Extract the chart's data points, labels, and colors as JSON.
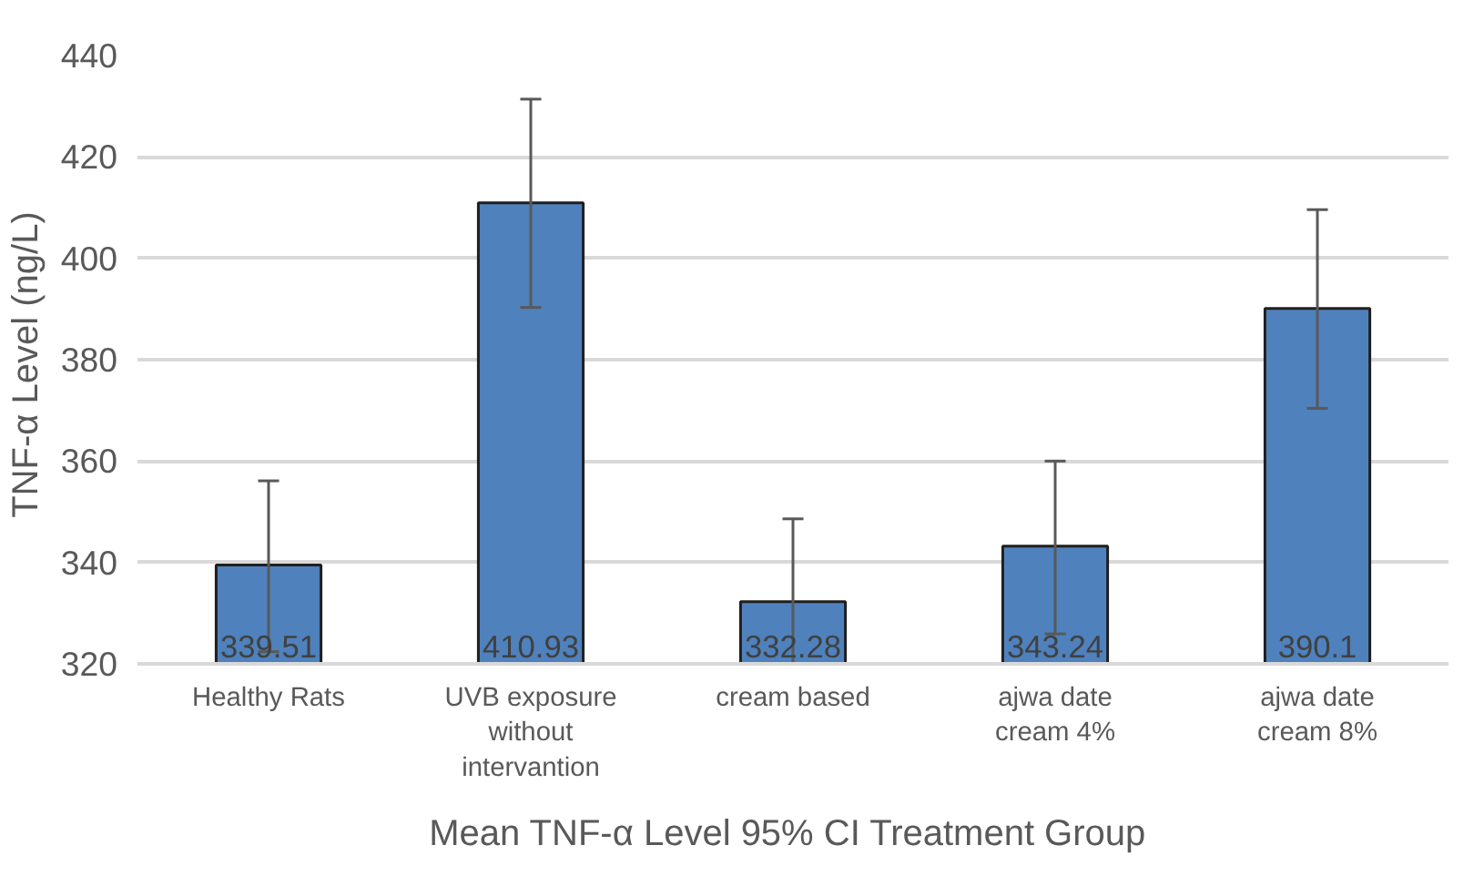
{
  "chart_data": {
    "type": "bar",
    "xlabel": "Mean TNF-α  Level 95% CI Treatment Group",
    "ylabel": "TNF-α  Level (ng/L)",
    "categories": [
      "Healthy Rats",
      "UVB exposure without intervantion",
      "cream based",
      "ajwa date cream 4%",
      "ajwa date cream 8%"
    ],
    "values": [
      339.51,
      410.93,
      332.28,
      343.24,
      390.1
    ],
    "errors": [
      [
        322.4,
        356.1
      ],
      [
        390.3,
        431.4
      ],
      [
        320,
        348.6
      ],
      [
        325.9,
        360.0
      ],
      [
        370.4,
        409.6
      ]
    ],
    "color": "#4f81bd",
    "ylim": [
      320,
      440
    ],
    "yticks": [
      320,
      340,
      360,
      380,
      400,
      420,
      440
    ],
    "grid": "y",
    "data_labels": true
  }
}
